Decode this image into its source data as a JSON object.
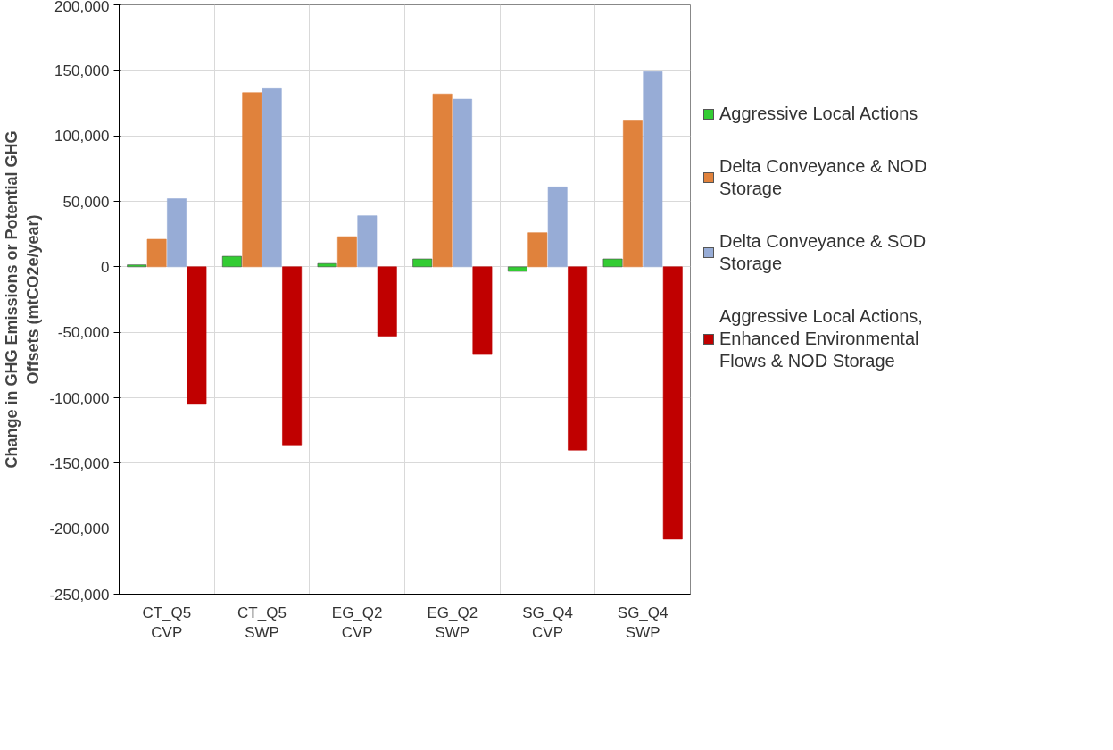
{
  "chart_data": {
    "type": "bar",
    "ylabel": "Change in GHG Emissions or Potential GHG Offsets (mtCO2e/year)",
    "categories": [
      "CT_Q5 CVP",
      "CT_Q5 SWP",
      "EG_Q2 CVP",
      "EG_Q2 SWP",
      "SG_Q4 CVP",
      "SG_Q4 SWP"
    ],
    "series": [
      {
        "name": "Aggressive Local Actions",
        "color": "#33cc33",
        "values": [
          1500,
          8000,
          2500,
          6000,
          -3500,
          6000
        ]
      },
      {
        "name": "Delta Conveyance & NOD Storage",
        "color": "#e0823c",
        "values": [
          21000,
          133000,
          23000,
          132000,
          26000,
          112000
        ]
      },
      {
        "name": "Delta Conveyance & SOD Storage",
        "color": "#97acd6",
        "values": [
          52000,
          136000,
          39000,
          128000,
          61000,
          149000
        ]
      },
      {
        "name": "Aggressive Local Actions, Enhanced Environmental Flows & NOD Storage",
        "color": "#c00000",
        "values": [
          -105000,
          -136000,
          -53000,
          -67000,
          -140000,
          -208000
        ]
      }
    ],
    "ylim": [
      -250000,
      200000
    ],
    "yticks": [
      {
        "value": -250000,
        "label": "-250,000"
      },
      {
        "value": -200000,
        "label": "-200,000"
      },
      {
        "value": -150000,
        "label": "-150,000"
      },
      {
        "value": -100000,
        "label": "-100,000"
      },
      {
        "value": -50000,
        "label": "-50,000"
      },
      0,
      {
        "value": 50000,
        "label": "50,000"
      },
      {
        "value": 100000,
        "label": "100,000"
      },
      {
        "value": 150000,
        "label": "150,000"
      },
      {
        "value": 200000,
        "label": "200,000"
      }
    ],
    "grid": true,
    "legend": "right"
  }
}
